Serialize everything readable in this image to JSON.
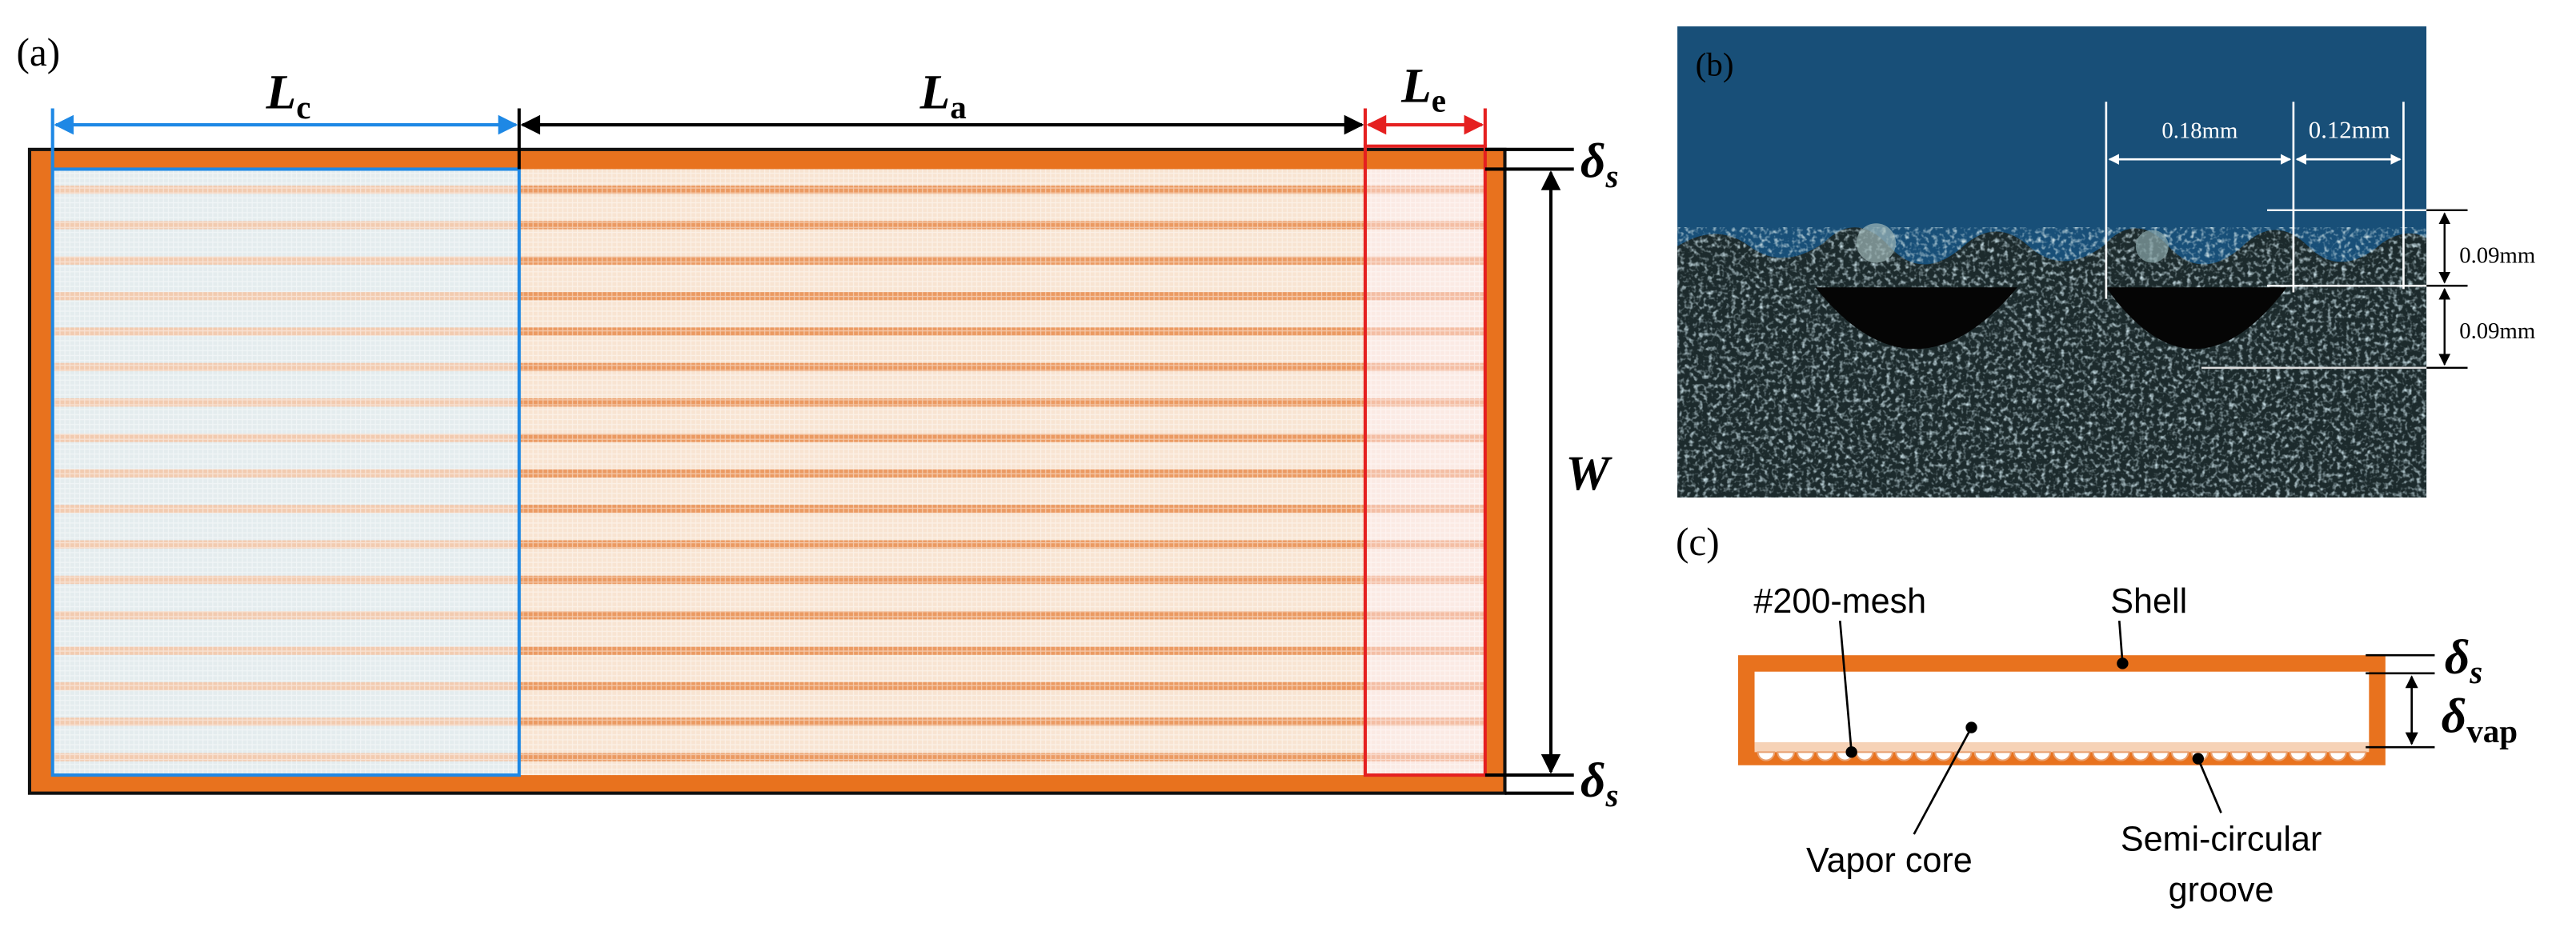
{
  "panel_a": {
    "label": "(a)",
    "lc": {
      "symbol": "L",
      "sub": "c"
    },
    "la": {
      "symbol": "L",
      "sub": "a"
    },
    "le": {
      "symbol": "L",
      "sub": "e"
    },
    "delta_top": {
      "symbol": "δ",
      "sub": "s"
    },
    "delta_bottom": {
      "symbol": "δ",
      "sub": "s"
    },
    "w": "W"
  },
  "panel_b": {
    "label": "(b)",
    "pitch_1": "0.18mm",
    "pitch_2": "0.12mm",
    "depth_1": "0.09mm",
    "depth_2": "0.09mm"
  },
  "panel_c": {
    "label": "(c)",
    "mesh": "#200-mesh",
    "shell": "Shell",
    "vapor_core": "Vapor core",
    "groove": [
      "Semi-circular",
      "groove"
    ],
    "delta_s": {
      "symbol": "δ",
      "sub": "s"
    },
    "delta_vap": {
      "symbol": "δ",
      "sub": "vap"
    }
  }
}
